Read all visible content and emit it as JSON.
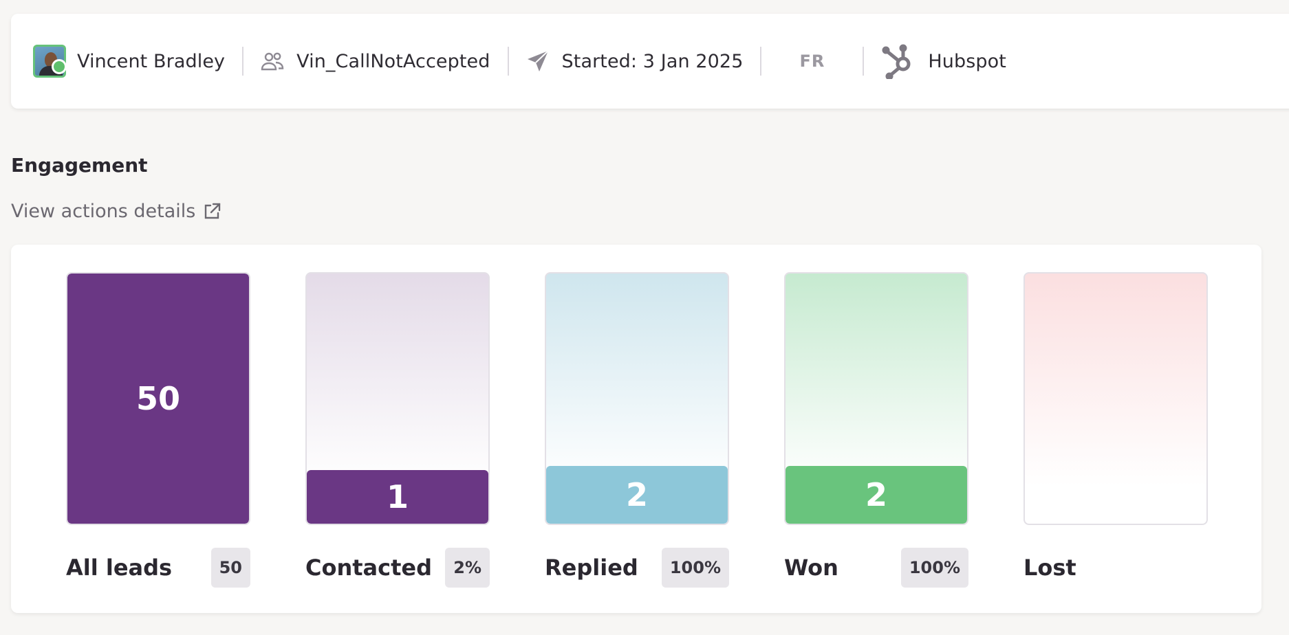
{
  "header": {
    "user_name": "Vincent Bradley",
    "list_name": "Vin_CallNotAccepted",
    "started": "Started: 3 Jan 2025",
    "language": "FR",
    "crm": "Hubspot"
  },
  "engagement": {
    "title": "Engagement",
    "view_link": "View actions details"
  },
  "stages": [
    {
      "label": "All leads",
      "value": "50",
      "badge": "50",
      "fill_fraction": 1.0,
      "color": "#6a3784",
      "bg": "#ffffff"
    },
    {
      "label": "Contacted",
      "value": "1",
      "badge": "2%",
      "fill_fraction": 0.02,
      "color": "#6a3784",
      "bg_top": "#e4dbe8"
    },
    {
      "label": "Replied",
      "value": "2",
      "badge": "100%",
      "fill_fraction": 1.0,
      "color": "#8dc7d9",
      "bg_top": "#cfe6ee"
    },
    {
      "label": "Won",
      "value": "2",
      "badge": "100%",
      "fill_fraction": 1.0,
      "color": "#69c47d",
      "bg_top": "#c6ead0"
    },
    {
      "label": "Lost",
      "value": "",
      "badge": "",
      "fill_fraction": 0,
      "color": "#f4a9ad",
      "bg_top": "#fbdfe0"
    }
  ]
}
